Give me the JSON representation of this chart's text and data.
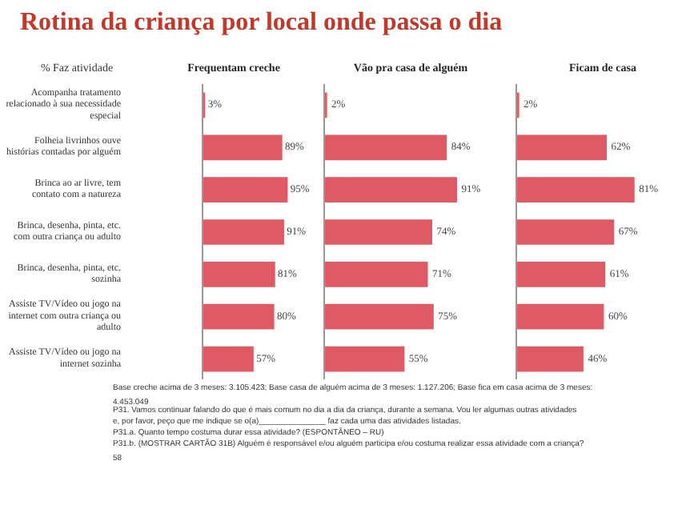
{
  "chart_data": [
    {
      "type": "bar",
      "orientation": "horizontal",
      "title": "Rotina da criança por local onde passa o dia",
      "subtitle": "Frequentam creche",
      "ylabel": "% Faz atividade",
      "tick_labels": "y",
      "color": "#e05a64",
      "categories": [
        "Acompanha tratamento relacionado à sua necessidade especial",
        "Folheia livrinhos ouve histórias contadas por alguém",
        "Brinca ao ar livre, tem contato com a natureza",
        "Brinca, desenha, pinta, etc. com outra criança ou adulto",
        "Brinca, desenha, pinta, etc. sozinha",
        "Assiste TV/Vídeo ou jogo na internet com outra criança ou adulto",
        "Assiste TV/Vídeo ou jogo na internet sozinha"
      ],
      "values": [
        3,
        89,
        95,
        91,
        81,
        80,
        57
      ],
      "value_labels": [
        "3%",
        "89%",
        "95%",
        "91%",
        "81%",
        "80%",
        "57%"
      ],
      "annotations": [
        "Base creche acima de 3 meses: 3.105.423; Base casa de alguém acima de 3 meses: 1.127.206; Base fica em casa acima de 3 meses: 4.453.049",
        "P31. Vamos continuar falando do que é mais comum no dia a dia da criança, durante a semana. Vou ler algumas outras atividades e, por favor, peço que me indique se o(a)_______________ faz cada uma das atividades listadas.",
        "P31.a. Quanto tempo costuma durar essa atividade? (ESPONTÂNEO – RU)",
        "P31.b. (MOSTRAR CARTÃO 31B) Alguém é responsável e/ou alguém participa e/ou costuma realizar essa atividade com a criança?",
        "58"
      ]
    },
    {
      "type": "bar",
      "orientation": "horizontal",
      "subtitle": "Vão pra casa de alguém",
      "tick_labels": false,
      "color": "#e05a64",
      "categories": [
        "Acompanha tratamento relacionado à sua necessidade especial",
        "Folheia livrinhos ouve histórias contadas por alguém",
        "Brinca ao ar livre, tem contato com a natureza",
        "Brinca, desenha, pinta, etc. com outra criança ou adulto",
        "Brinca, desenha, pinta, etc. sozinha",
        "Assiste TV/Vídeo ou jogo na internet com outra criança ou adulto",
        "Assiste TV/Vídeo ou jogo na internet sozinha"
      ],
      "values": [
        2,
        84,
        91,
        74,
        71,
        75,
        55
      ],
      "value_labels": [
        "2%",
        "84%",
        "91%",
        "74%",
        "71%",
        "75%",
        "55%"
      ]
    },
    {
      "type": "bar",
      "orientation": "horizontal",
      "subtitle": "Ficam de casa",
      "tick_labels": false,
      "color": "#e05a64",
      "categories": [
        "Acompanha tratamento relacionado à sua necessidade especial",
        "Folheia livrinhos ouve histórias contadas por alguém",
        "Brinca ao ar livre, tem contato com a natureza",
        "Brinca, desenha, pinta, etc. com outra criança ou adulto",
        "Brinca, desenha, pinta, etc. sozinha",
        "Assiste TV/Vídeo ou jogo na internet com outra criança ou adulto",
        "Assiste TV/Vídeo ou jogo na internet sozinha"
      ],
      "values": [
        2,
        62,
        81,
        67,
        61,
        60,
        46
      ],
      "value_labels": [
        "2%",
        "62%",
        "81%",
        "67%",
        "61%",
        "60%",
        "46%"
      ]
    }
  ]
}
